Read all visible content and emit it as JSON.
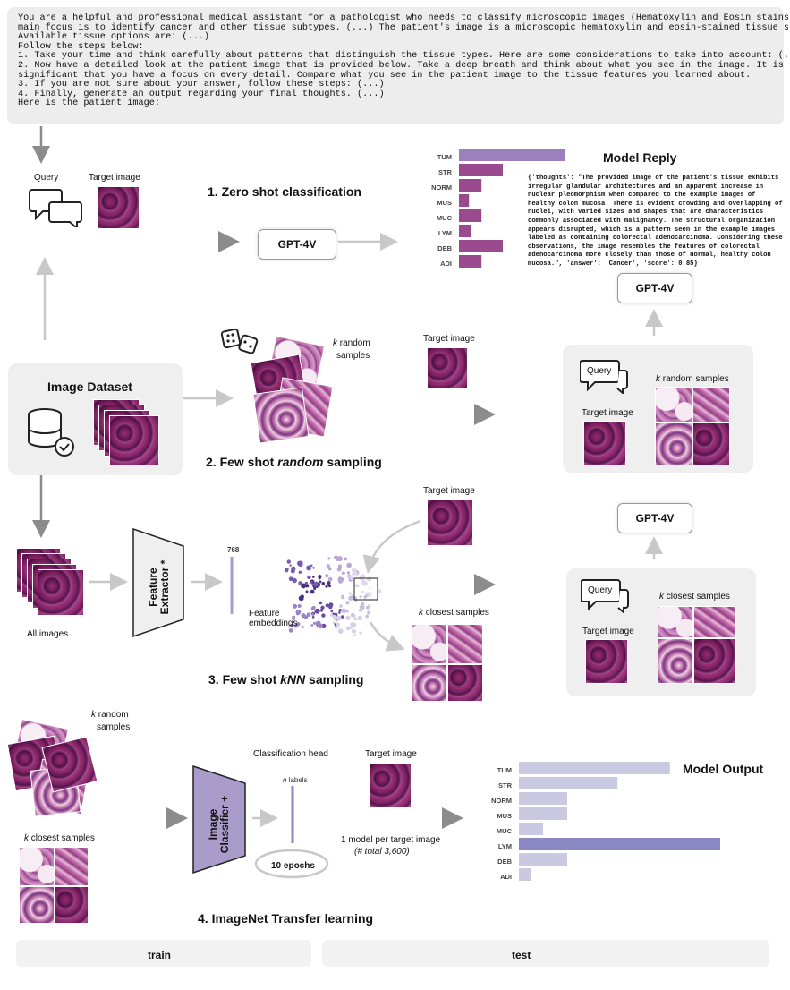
{
  "prompt": {
    "lines": [
      "You are a helpful and professional medical assistant for a pathologist who needs to classify microscopic images (Hematoxylin and Eosin stains). The",
      "main focus is to identify cancer and other tissue subtypes. (...) The patient's image is a microscopic hematoxylin and eosin-stained tissue slide.",
      "Available tissue options are: (...)",
      "Follow the steps below:",
      "1. Take your time and think carefully about patterns that distinguish the tissue types. Here are some considerations to take into account: (...)",
      "2. Now have a detailed look at the patient image that is provided below. Take a deep breath and think about what you see in the image. It is",
      "significant that you have a focus on every detail. Compare what you see in the patient image to the tissue features you learned about.",
      "3. If you are not sure about your answer, follow these steps: (...)",
      "4. Finally, generate an output regarding your final thoughts. (...)",
      "Here is the patient image:"
    ]
  },
  "labels": {
    "query": "Query",
    "target_image": "Target image",
    "zero_shot": "1. Zero shot classification",
    "gpt4v": "GPT-4V",
    "model_reply": "Model Reply",
    "k_random_samples_a": "k",
    "k_random_samples_b": " random",
    "k_random_samples_c": "samples",
    "image_dataset": "Image Dataset",
    "few_shot_random_a": "2. Few shot ",
    "few_shot_random_b": "random",
    "few_shot_random_c": " sampling",
    "k_random_samples_panel": " random samples",
    "k_closest_samples": " closest samples",
    "all_images": "All images",
    "feature_extractor": "Feature Extractor *",
    "dim_768": "768",
    "feature_embeddings_1": "Feature",
    "feature_embeddings_2": "embeddings",
    "few_shot_knn_a": "3. Few shot ",
    "few_shot_knn_b": "kNN",
    "few_shot_knn_c": " sampling",
    "classification_head": "Classification head",
    "n_labels_a": "n",
    "n_labels_b": " labels",
    "image_classifier": "Image Classifier +",
    "epochs": "10 epochs",
    "one_model": "1 model per target image",
    "total": "(# total 3,600)",
    "model_output": "Model Output",
    "imagenet": "4. ImageNet Transfer learning",
    "train": "train",
    "test": "test"
  },
  "model_reply_text": [
    "{'thoughts': \"The provided image of the patient's tissue exhibits",
    "irregular glandular architectures and an apparent increase in",
    "nuclear pleomorphism when compared to the example images of",
    "healthy colon mucosa. There is evident crowding and overlapping of",
    "nuclei, with varied sizes and shapes that are characteristics",
    "commonly associated with malignancy. The structural organization",
    "appears disrupted, which is a pattern seen in the example images",
    "labeled as containing colorectal adenocarcinoma. Considering these",
    "observations, the image resembles the features of colorectal",
    "adenocarcinoma more closely than those of normal, healthy colon",
    "mucosa.\", 'answer': 'Cancer', 'score': 0.85}"
  ],
  "colors": {
    "reply_bar": "#9a4a8f",
    "reply_bar_top": "#9b80bd",
    "output_bar": "#c9c9e2",
    "output_bar_top": "#8a87c3",
    "classifier": "#a99ccb",
    "embedding": "#5a3f8f"
  },
  "chart_data": [
    {
      "type": "bar",
      "title": "Model Reply",
      "categories": [
        "TUM",
        "STR",
        "NORM",
        "MUS",
        "MUC",
        "LYM",
        "DEB",
        "ADI"
      ],
      "values": [
        0.85,
        0.35,
        0.18,
        0.08,
        0.18,
        0.1,
        0.35,
        0.18
      ],
      "orientation": "horizontal"
    },
    {
      "type": "bar",
      "title": "Model Output",
      "categories": [
        "TUM",
        "STR",
        "NORM",
        "MUS",
        "MUC",
        "LYM",
        "DEB",
        "ADI"
      ],
      "values": [
        0.75,
        0.49,
        0.24,
        0.24,
        0.12,
        1.0,
        0.24,
        0.06
      ],
      "orientation": "horizontal"
    }
  ]
}
